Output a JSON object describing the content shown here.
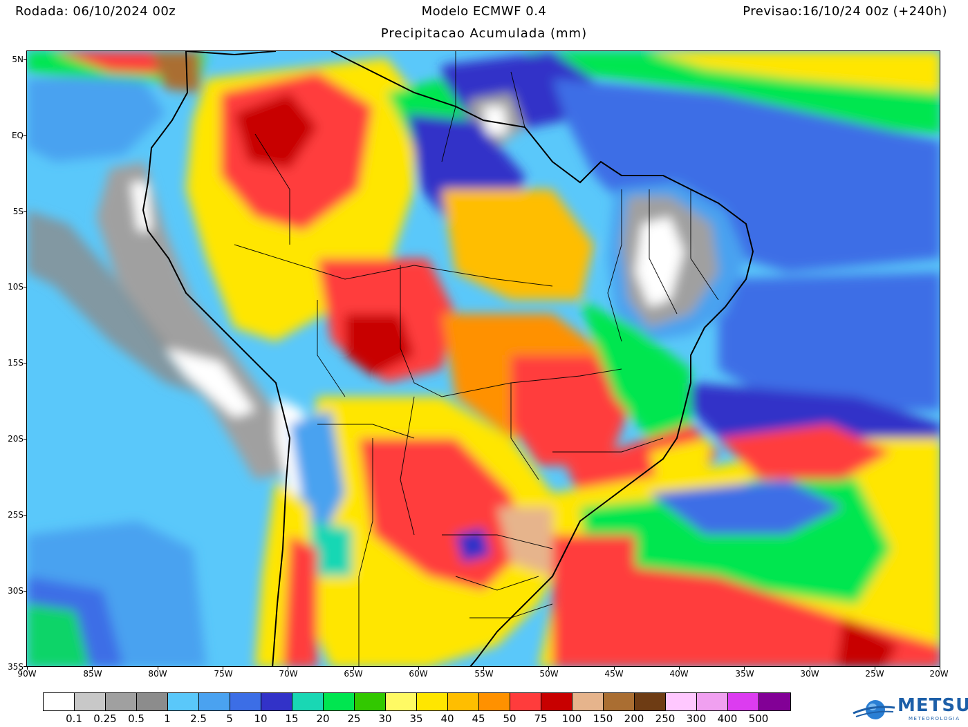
{
  "header": {
    "run": "Rodada: 06/10/2024 00z",
    "model": "Modelo ECMWF 0.4",
    "forecast": "Previsao:16/10/24 00z (+240h)",
    "subtitle": "Precipitacao Acumulada (mm)"
  },
  "map": {
    "lat_labels": [
      "5N",
      "EQ",
      "5S",
      "10S",
      "15S",
      "20S",
      "25S",
      "30S",
      "35S"
    ],
    "lon_labels": [
      "90W",
      "85W",
      "80W",
      "75W",
      "70W",
      "65W",
      "60W",
      "55W",
      "50W",
      "45W",
      "40W",
      "35W",
      "30W",
      "25W",
      "20W"
    ],
    "region": "South America",
    "variable": "accumulated precipitation"
  },
  "colorbar": {
    "colors": [
      "#ffffff",
      "#c8c8c8",
      "#a0a0a0",
      "#8c8c8c",
      "#5ac8fa",
      "#4aa2f0",
      "#3c6ee6",
      "#3232c8",
      "#19d7b4",
      "#00e650",
      "#32c800",
      "#fffa64",
      "#ffe600",
      "#ffbe00",
      "#ff9100",
      "#ff3c3c",
      "#c80000",
      "#e6b48c",
      "#aa6e32",
      "#6e3c14",
      "#ffc8ff",
      "#f0a0f0",
      "#dc3cf0",
      "#820096"
    ],
    "labels": [
      "0.1",
      "0.25",
      "0.5",
      "1",
      "2.5",
      "5",
      "10",
      "15",
      "20",
      "25",
      "30",
      "35",
      "40",
      "45",
      "50",
      "75",
      "100",
      "150",
      "200",
      "250",
      "300",
      "400",
      "500"
    ]
  },
  "logo": {
    "name": "METSUL",
    "sub": "METEOROLOGIA"
  }
}
